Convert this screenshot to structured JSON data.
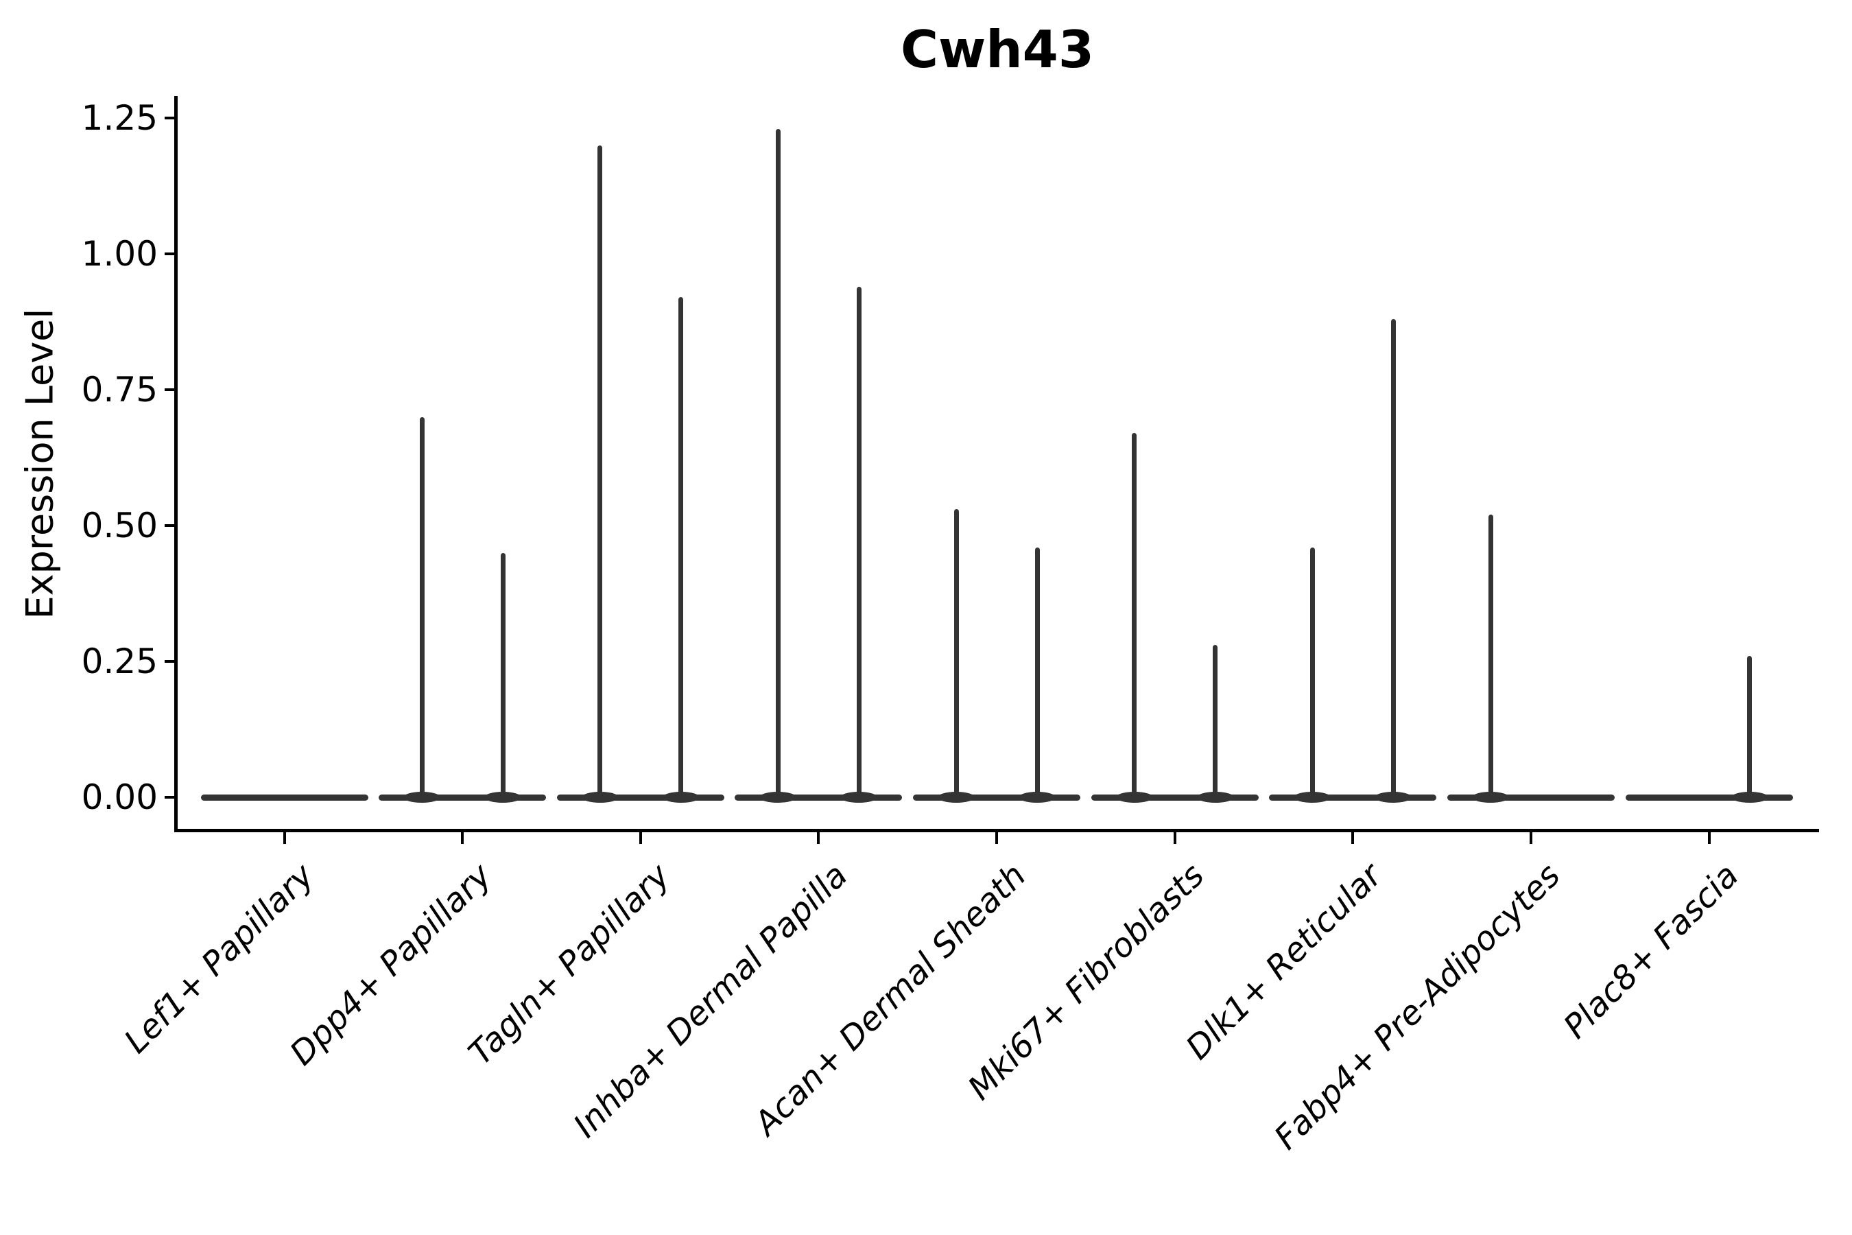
{
  "figure": {
    "title": "Cwh43",
    "background": "#ffffff",
    "text_color": "#000000"
  },
  "chart_data": {
    "type": "violin",
    "title": "Cwh43",
    "xlabel": "",
    "ylabel": "Expression Level",
    "ylim": [
      -0.06,
      1.29
    ],
    "grid": false,
    "legend": false,
    "violin_color": "#343434",
    "axis_color": "#000000",
    "yticks": [
      0.0,
      0.25,
      0.5,
      0.75,
      1.0,
      1.25
    ],
    "ytick_labels": [
      "0.00",
      "0.25",
      "0.50",
      "0.75",
      "1.00",
      "1.25"
    ],
    "categories": [
      "Lef1+ Papillary",
      "Dpp4+ Papillary",
      "Tagln+ Papillary",
      "Inhba+ Dermal Papilla",
      "Acan+ Dermal Sheath",
      "Mki67+ Fibroblasts",
      "Dlk1+ Reticular",
      "Fabp4+ Pre-Adipocytes",
      "Plac8+ Fascia"
    ],
    "groups_per_category": 2,
    "baseline_value": 0.0,
    "series": [
      {
        "name": "left",
        "max_values": [
          0,
          0.7,
          1.2,
          1.23,
          0.53,
          0.67,
          0.46,
          0.52,
          0
        ]
      },
      {
        "name": "right",
        "max_values": [
          0,
          0.45,
          0.92,
          0.94,
          0.46,
          0.28,
          0.88,
          0,
          0.26
        ]
      }
    ]
  }
}
